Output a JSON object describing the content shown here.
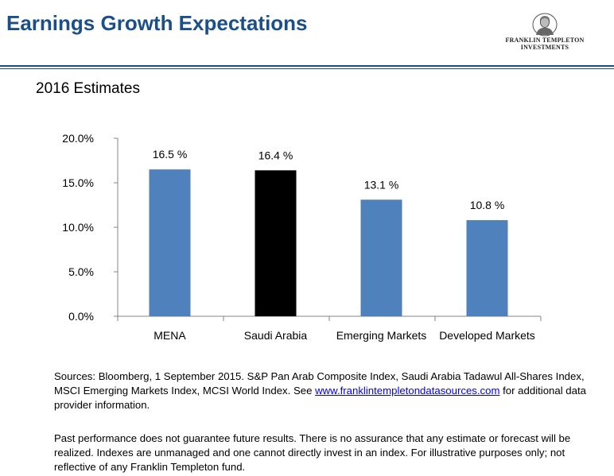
{
  "header": {
    "title": "Earnings Growth Expectations",
    "logo_line1": "FRANKLIN TEMPLETON",
    "logo_line2": "INVESTMENTS"
  },
  "subtitle": "2016 Estimates",
  "chart_data": {
    "type": "bar",
    "categories": [
      "MENA",
      "Saudi Arabia",
      "Emerging Markets",
      "Developed Markets"
    ],
    "values": [
      16.5,
      16.4,
      13.1,
      10.8
    ],
    "data_labels": [
      "16.5 %",
      "16.4 %",
      "13.1 %",
      "10.8 %"
    ],
    "bar_colors": [
      "#4f81bd",
      "#000000",
      "#4f81bd",
      "#4f81bd"
    ],
    "ylim": [
      0,
      20
    ],
    "yticks": [
      0,
      5,
      10,
      15,
      20
    ],
    "ytick_labels": [
      "0.0%",
      "5.0%",
      "10.0%",
      "15.0%",
      "20.0%"
    ],
    "title": "",
    "xlabel": "",
    "ylabel": "",
    "grid": false
  },
  "sources": {
    "text_before": "Sources: Bloomberg, 1 September 2015. S&P Pan Arab Composite Index, Saudi Arabia Tadawul All-Shares Index, MSCI Emerging Markets Index, MCSI World Index. See ",
    "link": "www.franklintempletondatasources.com",
    "text_after": " for additional data provider information."
  },
  "disclaimer": "Past performance does not guarantee future results. There is no assurance that  any estimate or forecast will be realized. Indexes are unmanaged and one cannot directly invest in an index. For illustrative purposes only; not reflective of any Franklin Templeton fund."
}
